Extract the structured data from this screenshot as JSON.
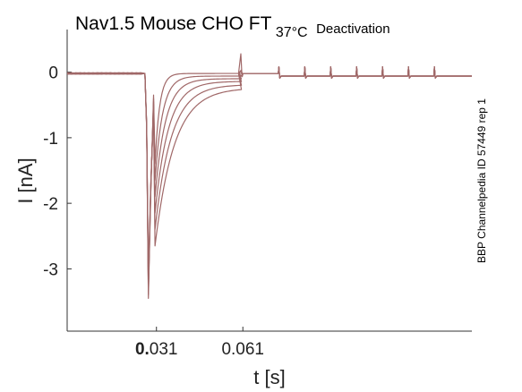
{
  "chart_data": {
    "type": "line",
    "title": {
      "main": "Nav1.5  Mouse  CHO FT",
      "sub": "37°C",
      "tail": "Deactivation"
    },
    "xlabel": "t [s]",
    "ylabel": "I [nA]",
    "side_label": "BBP Channelpedia ID 57449 rep 1",
    "xlim": [
      0.0,
      0.1405
    ],
    "ylim": [
      -3.95,
      0.65
    ],
    "x_ticks": [
      {
        "value": 0.031,
        "label_bold": "0.",
        "label_rest": "031"
      },
      {
        "value": 0.061,
        "label_bold": "",
        "label_rest": "0.061"
      }
    ],
    "y_ticks": [
      0,
      -1,
      -2,
      -3
    ],
    "y_tick_labels": [
      "0",
      "-1",
      "-2",
      "-3"
    ],
    "series_color": "#a06868",
    "grid": false,
    "legend": "none",
    "baseline_nA": -0.02,
    "trace_count": 6,
    "pulse_on_s": 0.027,
    "pulse_off_s": 0.0305,
    "peak_current_nA": -3.45,
    "tail_steady_nA": [
      -0.02,
      -0.06,
      -0.1,
      -0.14,
      -0.19,
      -0.24
    ],
    "tail_tau_s": 0.004,
    "artifact_spike_s": 0.0605,
    "artifact_spike_nA": 0.28,
    "artifact_small_s": [
      0.0595,
      0.0605
    ],
    "step_times_s": [
      0.0735,
      0.0825,
      0.0915,
      0.1005,
      0.1095,
      0.1185,
      0.1275
    ],
    "step_level_nA": -0.06,
    "step_blip_nA": 0.08
  }
}
